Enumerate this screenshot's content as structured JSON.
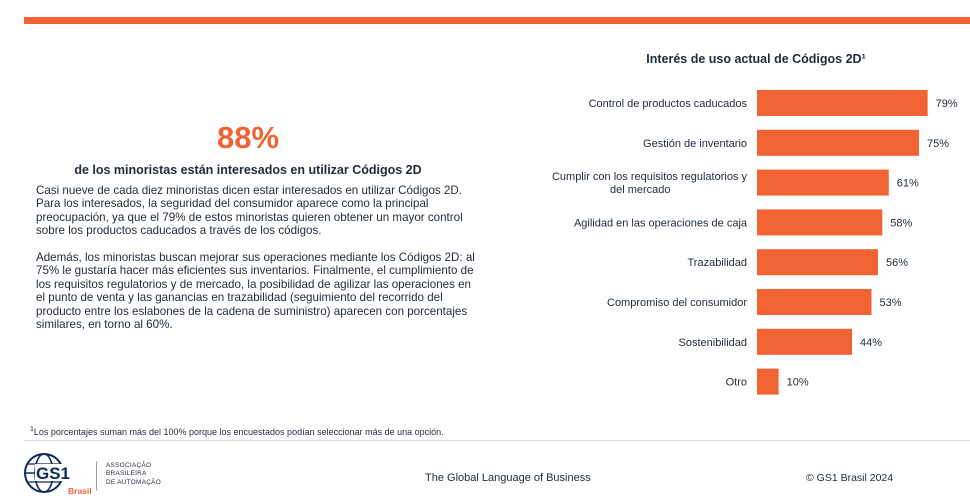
{
  "highlight": {
    "value": "88%",
    "caption": "de los minoristas están interesados en utilizar Códigos 2D"
  },
  "paragraphs": [
    "Casi nueve de cada diez minoristas dicen estar interesados en utilizar Códigos 2D. Para los interesados, la seguridad del consumidor aparece como la principal preocupación, ya que el 79% de estos minoristas quieren obtener un mayor control sobre los productos caducados a través de los códigos.",
    "Además, los minoristas buscan mejorar sus operaciones mediante los Códigos 2D: al 75% le gustaría hacer más eficientes sus inventarios. Finalmente, el cumplimiento de los requisitos regulatorios y de mercado, la posibilidad de agilizar las operaciones en el punto de venta y las ganancias en trazabilidad (seguimiento del recorrido del producto entre los eslabones de la cadena de suministro) aparecen con porcentajes similares, en torno al 60%."
  ],
  "chart_data": {
    "type": "bar",
    "orientation": "horizontal",
    "title": "Interés de uso actual de Códigos 2D¹",
    "categories": [
      "Control de productos caducados",
      "Gestión de inventario",
      "Cumplir con los requisitos regulatorios y del mercado",
      "Agilidad en las operaciones de caja",
      "Trazabilidad",
      "Compromiso del consumidor",
      "Sostenibilidad",
      "Otro"
    ],
    "category_lines": [
      [
        "Control de productos caducados"
      ],
      [
        "Gestión de inventario"
      ],
      [
        "Cumplir con los requisitos regulatorios y",
        "del mercado"
      ],
      [
        "Agilidad en las operaciones de caja"
      ],
      [
        "Trazabilidad"
      ],
      [
        "Compromiso del consumidor"
      ],
      [
        "Sostenibilidad"
      ],
      [
        "Otro"
      ]
    ],
    "values": [
      79,
      75,
      61,
      58,
      56,
      53,
      44,
      10
    ],
    "value_labels": [
      "79%",
      "75%",
      "61%",
      "58%",
      "56%",
      "53%",
      "44%",
      "10%"
    ],
    "unit": "%",
    "xlim": [
      0,
      100
    ],
    "grid": false,
    "legend": "none",
    "bar_color": "#f26334"
  },
  "footnote": {
    "mark": "1",
    "text": "Los porcentajes suman más del 100% porque los encuestados podían seleccionar más de una opción."
  },
  "footer": {
    "logo_text": "GS1",
    "logo_country": "Brasil",
    "org_lines": [
      "ASSOCIAÇÃO",
      "BRASILEIRA",
      "DE AUTOMAÇÃO"
    ],
    "tagline": "The Global Language of Business",
    "copyright": "© GS1 Brasil 2024"
  },
  "colors": {
    "accent": "#f26334",
    "text": "#1f2a3a",
    "logo_blue": "#0d2b5a"
  }
}
